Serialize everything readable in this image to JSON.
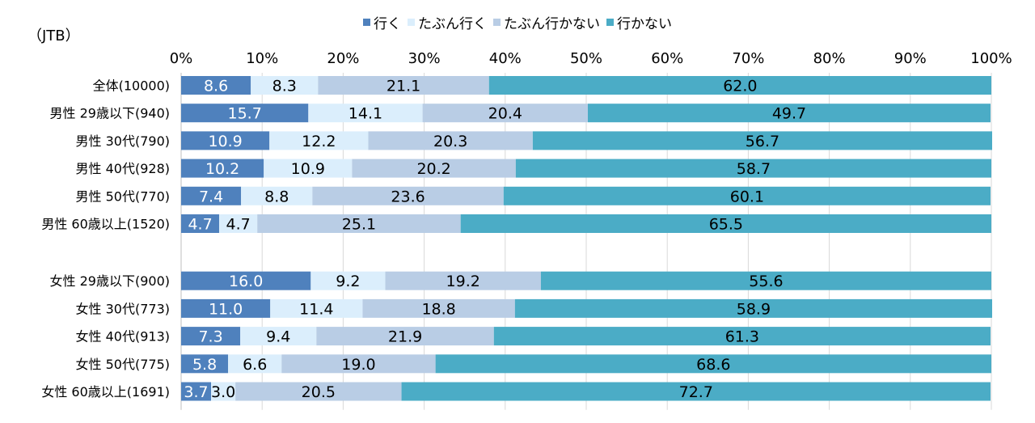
{
  "source": "（JTB）",
  "chart_data": {
    "type": "bar",
    "orientation": "horizontal",
    "stacked": true,
    "percent": true,
    "legend_position": "top",
    "xlim": [
      0,
      100
    ],
    "xticks": [
      "0%",
      "10%",
      "20%",
      "30%",
      "40%",
      "50%",
      "60%",
      "70%",
      "80%",
      "90%",
      "100%"
    ],
    "grid": true,
    "categories": [
      "全体(10000)",
      "男性 29歳以下(940)",
      "男性 30代(790)",
      "男性 40代(928)",
      "男性 50代(770)",
      "男性 60歳以上(1520)",
      "女性 29歳以下(900)",
      "女性 30代(773)",
      "女性 40代(913)",
      "女性 50代(775)",
      "女性 60歳以上(1691)"
    ],
    "gap_after_index": 5,
    "series": [
      {
        "name": "行く",
        "color": "#4f81bd",
        "label_color": "#ffffff",
        "values": [
          8.6,
          15.7,
          10.9,
          10.2,
          7.4,
          4.7,
          16.0,
          11.0,
          7.3,
          5.8,
          3.7
        ]
      },
      {
        "name": "たぶん行く",
        "color": "#dbeefc",
        "label_color": "#000000",
        "values": [
          8.3,
          14.1,
          12.2,
          10.9,
          8.8,
          4.7,
          9.2,
          11.4,
          9.4,
          6.6,
          3.0
        ]
      },
      {
        "name": "たぶん行かない",
        "color": "#b9cde5",
        "label_color": "#000000",
        "values": [
          21.1,
          20.4,
          20.3,
          20.2,
          23.6,
          25.1,
          19.2,
          18.8,
          21.9,
          19.0,
          20.5
        ]
      },
      {
        "name": "行かない",
        "color": "#4bacc6",
        "label_color": "#000000",
        "values": [
          62.0,
          49.7,
          56.7,
          58.7,
          60.1,
          65.5,
          55.6,
          58.9,
          61.3,
          68.6,
          72.7
        ]
      }
    ]
  }
}
